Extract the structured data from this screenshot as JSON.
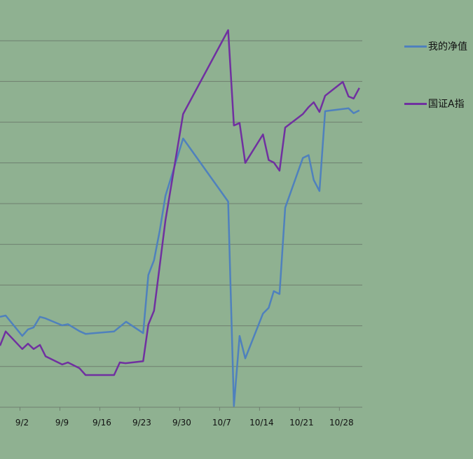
{
  "chart_data": {
    "type": "line",
    "title": "",
    "xlabel": "",
    "ylabel": "",
    "x_unit": "days since 9/2",
    "xlim": [
      -3.5,
      60
    ],
    "ylim": [
      0,
      9.3
    ],
    "grid": true,
    "legend_position": "right",
    "x_ticks": [
      0,
      7,
      14,
      21,
      28,
      35,
      42,
      49,
      56
    ],
    "x_tick_labels": [
      "9/2",
      "9/9",
      "9/16",
      "9/23",
      "9/30",
      "10/7",
      "10/14",
      "10/21",
      "10/28"
    ],
    "y_gridlines": [
      1,
      2,
      3,
      4,
      5,
      6,
      7,
      8,
      9
    ],
    "series": [
      {
        "name": "我的净值",
        "color": "#4f81bd",
        "x": [
          -3.5,
          -2.5,
          0.4,
          1.4,
          2.4,
          3.5,
          4.5,
          7.4,
          8.4,
          10.4,
          11.5,
          16.5,
          18.6,
          21.6,
          22.5,
          23.5,
          24.5,
          25.5,
          28.6,
          36.5,
          37.5,
          38.5,
          39.5,
          42.6,
          43.6,
          44.5,
          45.5,
          46.5,
          49.6,
          50.6,
          51.5,
          52.5,
          53.5,
          57.6,
          58.5,
          59.5
        ],
        "values": [
          2.22,
          2.25,
          1.75,
          1.91,
          1.96,
          2.22,
          2.18,
          2.01,
          2.04,
          1.87,
          1.8,
          1.86,
          2.1,
          1.82,
          3.25,
          3.61,
          4.33,
          5.19,
          6.6,
          5.05,
          0.03,
          1.75,
          1.2,
          2.3,
          2.44,
          2.85,
          2.78,
          4.9,
          6.12,
          6.19,
          5.58,
          5.31,
          7.27,
          7.34,
          7.22,
          7.29
        ]
      },
      {
        "name": "国证A指",
        "color": "#7030a0",
        "x": [
          -3.5,
          -2.5,
          0.4,
          1.4,
          2.4,
          3.5,
          4.5,
          7.4,
          8.4,
          10.4,
          11.5,
          16.5,
          17.5,
          18.5,
          21.6,
          22.5,
          23.5,
          24.5,
          25.5,
          28.6,
          36.5,
          37.5,
          38.5,
          39.5,
          42.6,
          43.6,
          44.5,
          45.5,
          46.5,
          49.6,
          50.6,
          51.5,
          52.5,
          53.5,
          56.6,
          57.6,
          58.5,
          59.5
        ],
        "values": [
          1.51,
          1.86,
          1.43,
          1.56,
          1.43,
          1.53,
          1.25,
          1.05,
          1.1,
          0.96,
          0.79,
          0.79,
          1.1,
          1.08,
          1.13,
          2.03,
          2.37,
          3.47,
          4.59,
          7.2,
          9.26,
          6.92,
          6.98,
          6.0,
          6.7,
          6.07,
          6.01,
          5.81,
          6.87,
          7.2,
          7.37,
          7.49,
          7.25,
          7.65,
          7.99,
          7.63,
          7.58,
          7.84
        ]
      }
    ]
  }
}
